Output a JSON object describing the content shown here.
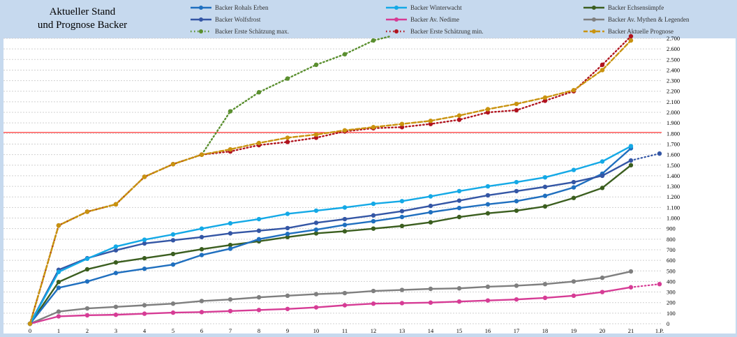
{
  "chart_data": {
    "type": "line",
    "title_lines": [
      "Aktueller Stand",
      "und Prognose Backer"
    ],
    "x_ticks": [
      "0",
      "1",
      "2",
      "3",
      "4",
      "5",
      "6",
      "7",
      "8",
      "9",
      "10",
      "11",
      "12",
      "13",
      "14",
      "15",
      "16",
      "17",
      "18",
      "19",
      "20",
      "21",
      "1.P."
    ],
    "xlim": [
      0,
      22
    ],
    "ylim": [
      0,
      2700
    ],
    "y_step": 100,
    "grid": true,
    "legend_position": "top",
    "reference_line": {
      "value": 1810,
      "color": "#ff0000"
    },
    "series": [
      {
        "name": "Backer Rohals Erben",
        "color": "#1f6fbf",
        "style": "solid",
        "x": [
          0,
          1,
          2,
          3,
          4,
          5,
          6,
          7,
          8,
          9,
          10,
          11,
          12,
          13,
          14,
          15,
          16,
          17,
          18,
          19,
          20,
          21
        ],
        "values": [
          0,
          340,
          400,
          480,
          520,
          560,
          650,
          710,
          800,
          850,
          890,
          935,
          970,
          1010,
          1055,
          1095,
          1130,
          1160,
          1210,
          1290,
          1420,
          1660
        ]
      },
      {
        "name": "Backer Winterwacht",
        "color": "#14a9e6",
        "style": "solid",
        "x": [
          0,
          1,
          2,
          3,
          4,
          5,
          6,
          7,
          8,
          9,
          10,
          11,
          12,
          13,
          14,
          15,
          16,
          17,
          18,
          19,
          20,
          21
        ],
        "values": [
          0,
          490,
          615,
          730,
          795,
          845,
          900,
          950,
          990,
          1040,
          1070,
          1100,
          1135,
          1160,
          1205,
          1255,
          1300,
          1340,
          1385,
          1455,
          1535,
          1680
        ]
      },
      {
        "name": "Backer Echsensümpfe",
        "color": "#3b5e1f",
        "style": "solid",
        "x": [
          0,
          1,
          2,
          3,
          4,
          5,
          6,
          7,
          8,
          9,
          10,
          11,
          12,
          13,
          14,
          15,
          16,
          17,
          18,
          19,
          20,
          21
        ],
        "values": [
          0,
          395,
          515,
          580,
          620,
          660,
          705,
          745,
          780,
          820,
          855,
          875,
          900,
          925,
          960,
          1010,
          1045,
          1070,
          1110,
          1190,
          1285,
          1500
        ]
      },
      {
        "name": "Backer Wolfsfrost",
        "color": "#3456a5",
        "style": "solid",
        "x": [
          0,
          1,
          2,
          3,
          4,
          5,
          6,
          7,
          8,
          9,
          10,
          11,
          12,
          13,
          14,
          15,
          16,
          17,
          18,
          19,
          20,
          21
        ],
        "values": [
          0,
          510,
          620,
          695,
          760,
          790,
          820,
          855,
          880,
          905,
          955,
          990,
          1025,
          1065,
          1115,
          1165,
          1215,
          1255,
          1295,
          1340,
          1400,
          1545
        ]
      },
      {
        "name": "Backer Av. Nedime",
        "color": "#d63c95",
        "style": "solid",
        "x": [
          0,
          1,
          2,
          3,
          4,
          5,
          6,
          7,
          8,
          9,
          10,
          11,
          12,
          13,
          14,
          15,
          16,
          17,
          18,
          19,
          20,
          21
        ],
        "values": [
          0,
          70,
          80,
          85,
          95,
          105,
          110,
          120,
          130,
          140,
          155,
          175,
          190,
          195,
          200,
          210,
          220,
          230,
          245,
          265,
          300,
          345
        ]
      },
      {
        "name": "Backer Av. Mythen & Legenden",
        "color": "#7f7f7f",
        "style": "solid",
        "x": [
          0,
          1,
          2,
          3,
          4,
          5,
          6,
          7,
          8,
          9,
          10,
          11,
          12,
          13,
          14,
          15,
          16,
          17,
          18,
          19,
          20,
          21
        ],
        "values": [
          0,
          115,
          145,
          160,
          175,
          190,
          215,
          230,
          250,
          265,
          280,
          290,
          310,
          320,
          330,
          335,
          350,
          360,
          375,
          400,
          435,
          495
        ]
      },
      {
        "name": "Backer Erste Schätzung max.",
        "color": "#5a8f2f",
        "style": "dotted",
        "x": [
          0,
          1,
          2,
          3,
          4,
          5,
          6,
          7,
          8,
          9,
          10,
          11,
          12,
          12.6
        ],
        "values": [
          0,
          930,
          1060,
          1130,
          1390,
          1510,
          1600,
          2010,
          2190,
          2320,
          2450,
          2550,
          2680,
          2720
        ]
      },
      {
        "name": "Backer Erste Schätzung min.",
        "color": "#b0131e",
        "style": "dotted",
        "x": [
          0,
          1,
          2,
          3,
          4,
          5,
          6,
          7,
          8,
          9,
          10,
          11,
          12,
          13,
          14,
          15,
          16,
          17,
          18,
          19,
          20,
          21
        ],
        "values": [
          0,
          930,
          1060,
          1130,
          1390,
          1510,
          1600,
          1630,
          1690,
          1720,
          1760,
          1820,
          1850,
          1860,
          1890,
          1930,
          2000,
          2020,
          2110,
          2200,
          2450,
          2720
        ]
      },
      {
        "name": "Backer Aktuelle Prognose",
        "color": "#c9930f",
        "style": "dashed",
        "x": [
          0,
          1,
          2,
          3,
          4,
          5,
          6,
          7,
          8,
          9,
          10,
          11,
          12,
          13,
          14,
          15,
          16,
          17,
          18,
          19,
          20,
          21
        ],
        "values": [
          0,
          930,
          1060,
          1130,
          1390,
          1510,
          1600,
          1650,
          1710,
          1760,
          1790,
          1830,
          1860,
          1890,
          1920,
          1970,
          2030,
          2080,
          2140,
          2210,
          2400,
          2680
        ]
      }
    ],
    "projections": [
      {
        "color": "#3456a5",
        "from": [
          21,
          1545
        ],
        "to": [
          22,
          1610
        ]
      },
      {
        "color": "#d63c95",
        "from": [
          21,
          345
        ],
        "to": [
          22,
          375
        ]
      }
    ]
  }
}
